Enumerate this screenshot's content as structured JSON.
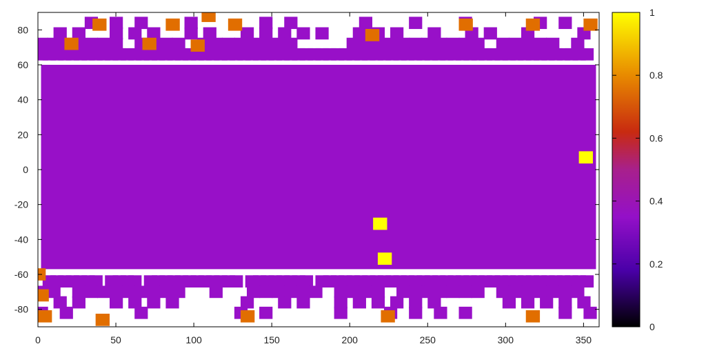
{
  "chart_data": {
    "type": "heatmap",
    "title": "",
    "xlabel": "",
    "ylabel": "",
    "xlim": [
      0,
      360
    ],
    "ylim": [
      -90,
      90
    ],
    "x_ticks": [
      0,
      50,
      100,
      150,
      200,
      250,
      300,
      350
    ],
    "y_ticks": [
      80,
      60,
      40,
      20,
      0,
      -20,
      -40,
      -60,
      -80
    ],
    "grid": false,
    "colorbar": {
      "range": [
        0,
        1
      ],
      "ticks": [
        0,
        0.2,
        0.4,
        0.6,
        0.8,
        1
      ],
      "placement": "right",
      "palette": [
        "#000000",
        "#5a00b4",
        "#9810c8",
        "#c83000",
        "#e8a000",
        "#ffff00"
      ]
    },
    "background_value": 0.35,
    "cell_size": [
      10,
      7
    ],
    "points": [
      {
        "x": 352,
        "y": 7,
        "v": 1.0
      },
      {
        "x": 220,
        "y": -31,
        "v": 1.0
      },
      {
        "x": 223,
        "y": -51,
        "v": 1.0
      },
      {
        "x": 22,
        "y": 72,
        "v": 0.8
      },
      {
        "x": 40,
        "y": 83,
        "v": 0.8
      },
      {
        "x": 72,
        "y": 72,
        "v": 0.8
      },
      {
        "x": 87,
        "y": 83,
        "v": 0.8
      },
      {
        "x": 103,
        "y": 71,
        "v": 0.8
      },
      {
        "x": 110,
        "y": 88,
        "v": 0.8
      },
      {
        "x": 127,
        "y": 83,
        "v": 0.8
      },
      {
        "x": 215,
        "y": 77,
        "v": 0.8
      },
      {
        "x": 275,
        "y": 83,
        "v": 0.8
      },
      {
        "x": 318,
        "y": 83,
        "v": 0.8
      },
      {
        "x": 355,
        "y": 83,
        "v": 0.8
      },
      {
        "x": 1,
        "y": -60,
        "v": 0.8
      },
      {
        "x": 5,
        "y": -84,
        "v": 0.8
      },
      {
        "x": 42,
        "y": -86,
        "v": 0.8
      },
      {
        "x": 135,
        "y": -84,
        "v": 0.8
      },
      {
        "x": 225,
        "y": -84,
        "v": 0.8
      },
      {
        "x": 318,
        "y": -84,
        "v": 0.8
      },
      {
        "x": 3,
        "y": -72,
        "v": 0.8
      }
    ]
  }
}
